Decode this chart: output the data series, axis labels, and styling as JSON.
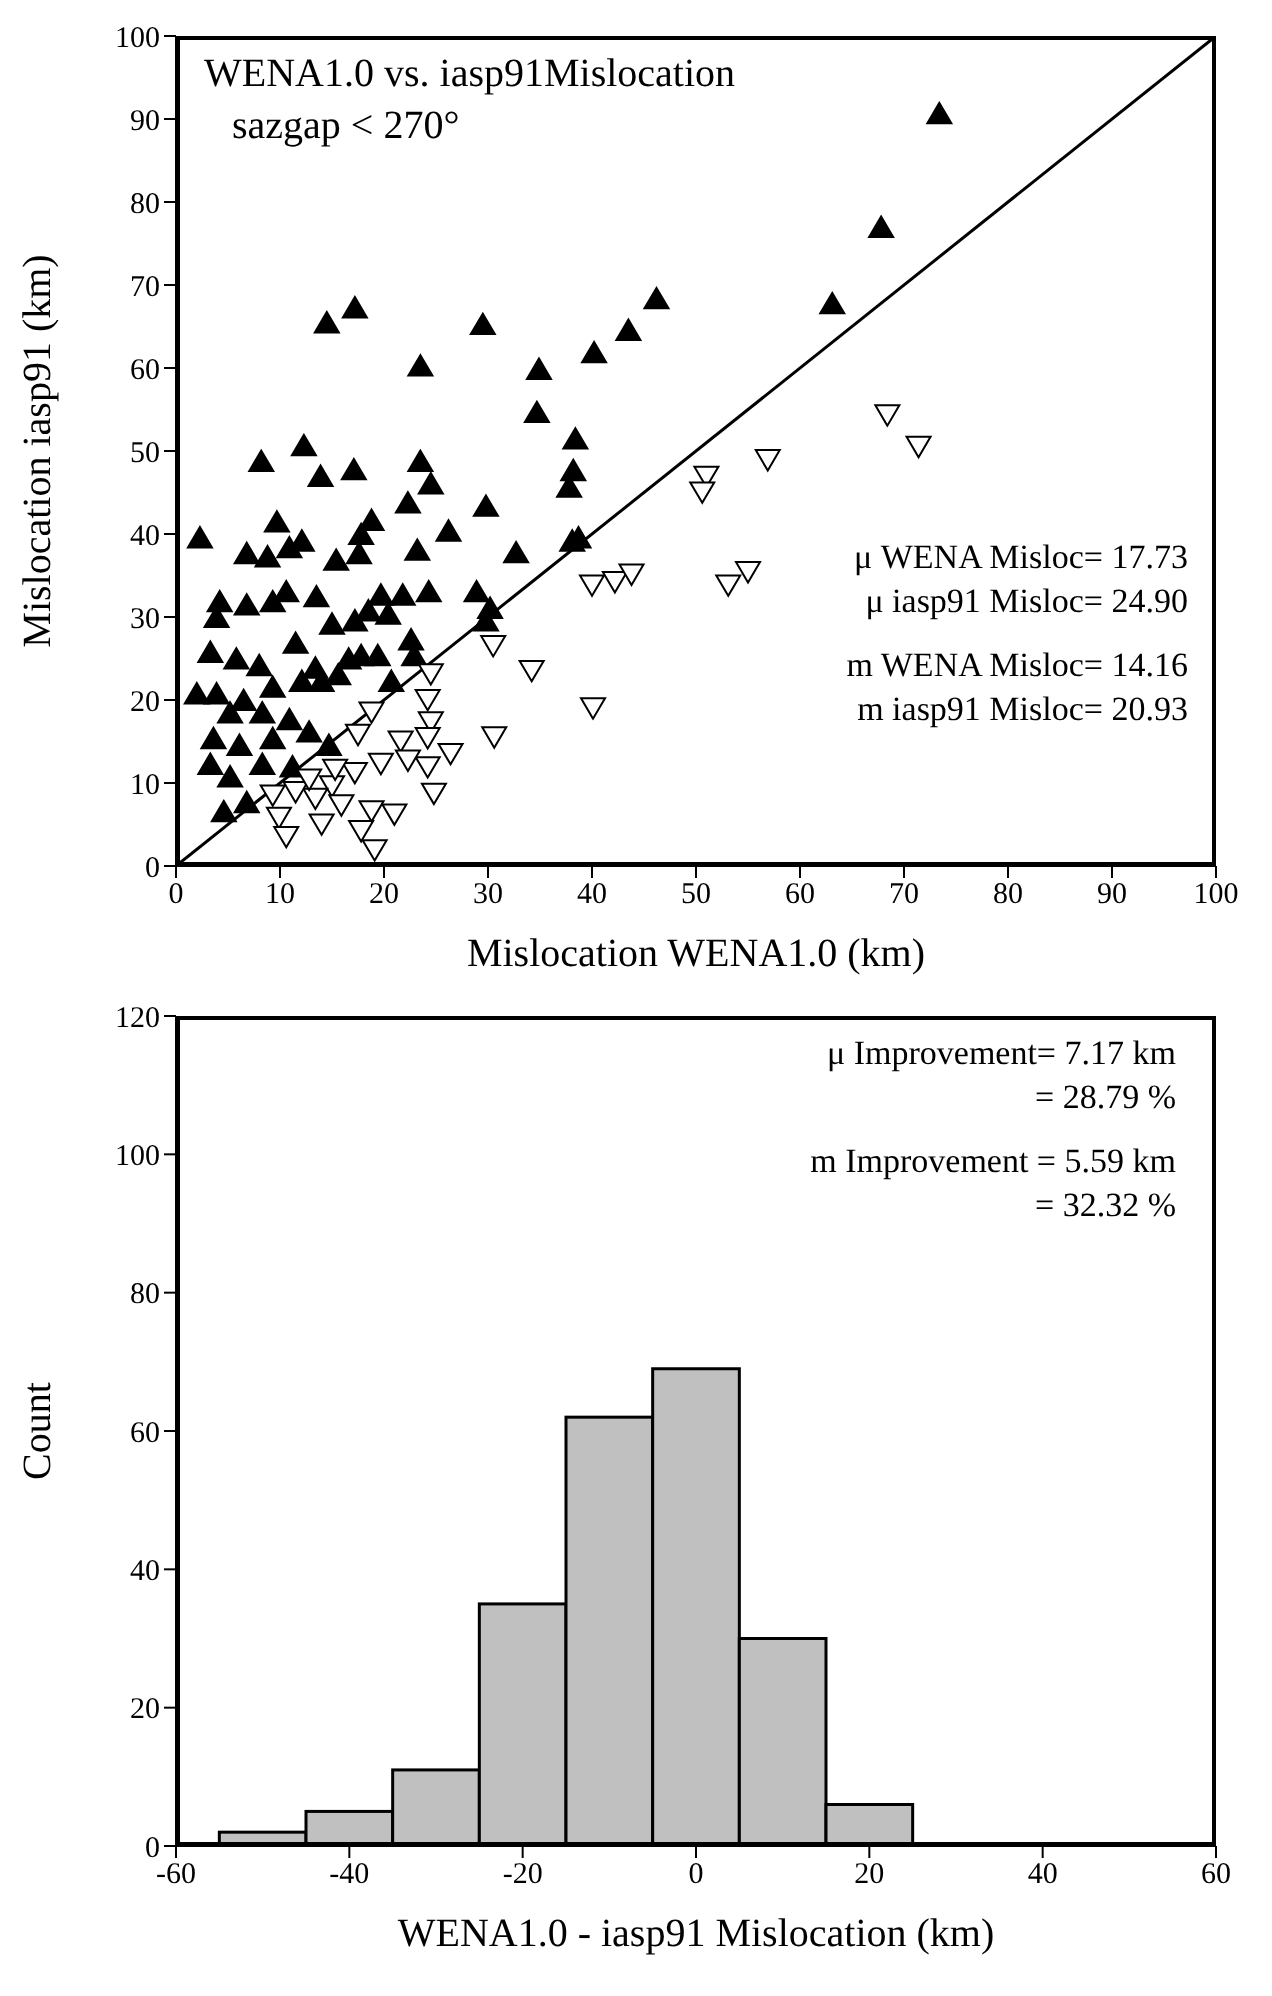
{
  "chart_data": [
    {
      "type": "scatter",
      "title": "WENA1.0 vs. iasp91Mislocation",
      "subtitle": "sazgap < 270°",
      "xlabel": "Mislocation WENA1.0 (km)",
      "ylabel": "Mislocation iasp91 (km)",
      "xlim": [
        0,
        100
      ],
      "xticks": [
        0,
        10,
        20,
        30,
        40,
        50,
        60,
        70,
        80,
        90,
        100
      ],
      "ylim": [
        0,
        100
      ],
      "yticks": [
        0,
        10,
        20,
        30,
        40,
        50,
        60,
        70,
        80,
        90,
        100
      ],
      "annotations": [
        "μ WENA Misloc= 17.73",
        "μ iasp91 Misloc= 24.90",
        "m WENA Misloc= 14.16",
        "m iasp91 Misloc= 20.93"
      ],
      "series": [
        {
          "type": "scatter",
          "marker": "triangle",
          "color": "#000000",
          "x": [
            2.3,
            14.5,
            17.2,
            29.5,
            23.5,
            34.9,
            34.7,
            8.2,
            12.3,
            13.9,
            17.1,
            23.5,
            24.5,
            22.3,
            29.8,
            9.7,
            18.8,
            17.8,
            26.2,
            32.7,
            23.2,
            6.8,
            8.8,
            10.9,
            12.1,
            15.4,
            17.6,
            4.2,
            6.8,
            9.3,
            10.6,
            13.5,
            19.7,
            21.8,
            24.3,
            28.9,
            3.9,
            15,
            17.2,
            18.5,
            20.4,
            30.2,
            29.8,
            3.3,
            5.8,
            8,
            11.5,
            13.4,
            16.6,
            17.8,
            19.4,
            22.6,
            22.9,
            20.7,
            2,
            3.9,
            6.5,
            9.3,
            12.1,
            14,
            15.6,
            5.2,
            8.3,
            10.9,
            3.6,
            6.1,
            9.3,
            12.8,
            14.7,
            3.3,
            5.2,
            8.3,
            11.2,
            4.6,
            6.8,
            73.4,
            67.8,
            63.1,
            46.2,
            43.5,
            40.2,
            38.4,
            38.2,
            37.8,
            38.1,
            38.7
          ],
          "values": [
            39.4,
            65.3,
            67.1,
            65.1,
            60.1,
            59.7,
            54.5,
            48.6,
            50.5,
            46.8,
            47.6,
            48.6,
            45.9,
            43.6,
            43.2,
            41.3,
            41.5,
            39.8,
            40.2,
            37.6,
            37.9,
            37.5,
            37.1,
            38.2,
            39,
            36.7,
            37.5,
            31.7,
            31.3,
            31.7,
            32.9,
            32.3,
            32.5,
            32.5,
            32.9,
            32.9,
            29.8,
            29,
            29.4,
            30.6,
            30.2,
            30.9,
            29.4,
            25.6,
            24.8,
            24,
            26.7,
            23.7,
            24.8,
            25.2,
            25.2,
            27.1,
            25.2,
            22.1,
            20.6,
            20.6,
            19.8,
            21.4,
            22.1,
            22.1,
            22.9,
            18.3,
            18.3,
            17.5,
            15.2,
            14.4,
            15.2,
            16,
            14.4,
            12.1,
            10.6,
            12.1,
            11.8,
            6.4,
            7.5,
            90.5,
            76.8,
            67.6,
            68.2,
            64.4,
            61.7,
            51.3,
            47.5,
            45.5,
            39,
            39.4
          ]
        },
        {
          "type": "scatter",
          "marker": "triangle",
          "color": "#000000",
          "x": [
            68.4,
            71.4,
            56.9,
            51,
            50.6,
            40,
            42.2,
            43.8,
            53.1,
            55,
            30.5,
            34.2,
            40.1,
            30.6,
            26.4,
            24.8,
            24.2,
            24.5,
            24.2,
            24.5,
            21.6,
            24.2,
            22.3,
            18.8,
            17.5,
            19.7,
            17.2,
            15,
            13.4,
            15.9,
            11.5,
            9.9,
            10.6,
            14,
            17.8,
            19.1,
            21,
            18.8,
            9.3,
            12.8,
            15.3
          ],
          "values": [
            54.5,
            50.7,
            49.1,
            47.1,
            45.2,
            34,
            34.4,
            35.3,
            34,
            35.6,
            26.7,
            23.7,
            19.2,
            15.7,
            13.7,
            8.9,
            12.1,
            23.3,
            20.2,
            17.5,
            15.2,
            15.6,
            12.9,
            18.7,
            16,
            12.5,
            11.4,
            9.8,
            8.3,
            7.5,
            9.1,
            6,
            3.7,
            5.2,
            4.4,
            2.1,
            6.4,
            6.8,
            8.7,
            10.6,
            11.8
          ]
        },
        {
          "type": "line",
          "marker": "none",
          "color": "#000000",
          "x": [
            0,
            100
          ],
          "values": [
            0,
            100
          ]
        }
      ]
    },
    {
      "type": "histogram",
      "xlabel": "WENA1.0  - iasp91 Mislocation (km)",
      "ylabel": "Count",
      "color": "#c0c0c0",
      "bins": [
        -55,
        -45,
        -35,
        -25,
        -15,
        -5,
        5,
        15,
        25
      ],
      "values": [
        2,
        5,
        11,
        35,
        62,
        69,
        30,
        6
      ],
      "xlim": [
        -60,
        60
      ],
      "xticks": [
        -60,
        -40,
        -20,
        0,
        20,
        40,
        60
      ],
      "ylim": [
        0,
        120
      ],
      "yticks": [
        0,
        20,
        40,
        60,
        80,
        100,
        120
      ],
      "annotations": [
        "μ  Improvement=   7.17 km",
        "= 28.79 %",
        "m Improvement =   5.59 km",
        "=  32.32 %"
      ]
    }
  ]
}
